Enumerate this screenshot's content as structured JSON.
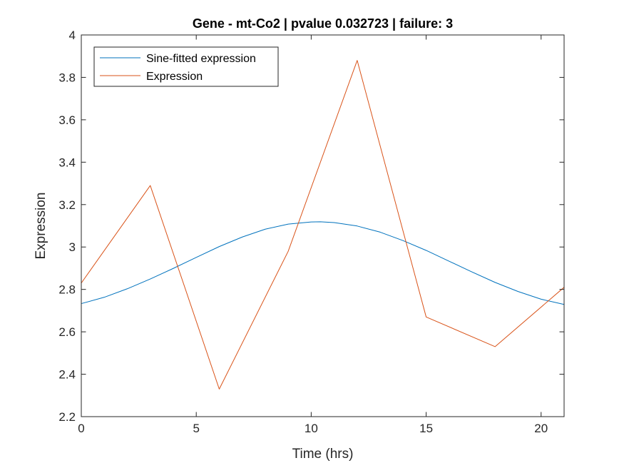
{
  "chart_data": {
    "type": "line",
    "title": "Gene - mt-Co2 | pvalue 0.032723 | failure: 3",
    "xlabel": "Time (hrs)",
    "ylabel": "Expression",
    "xlim": [
      0,
      21
    ],
    "ylim": [
      2.2,
      4
    ],
    "xticks": [
      0,
      5,
      10,
      15,
      20
    ],
    "xtick_labels": [
      "0",
      "5",
      "10",
      "15",
      "20"
    ],
    "yticks": [
      2.2,
      2.4,
      2.6,
      2.8,
      3,
      3.2,
      3.4,
      3.6,
      3.8,
      4
    ],
    "ytick_labels": [
      "2.2",
      "2.4",
      "2.6",
      "2.8",
      "3",
      "3.2",
      "3.4",
      "3.6",
      "3.8",
      "4"
    ],
    "grid": false,
    "legend_position": "top-left",
    "series": [
      {
        "name": "Sine-fitted expression",
        "color": "#0072BD",
        "x": [
          0,
          1,
          2,
          3,
          4,
          5,
          6,
          7,
          8,
          9,
          10,
          10.4,
          11,
          12,
          13,
          14,
          15,
          16,
          17,
          18,
          19,
          20,
          21
        ],
        "y": [
          2.733,
          2.763,
          2.803,
          2.849,
          2.899,
          2.951,
          3.002,
          3.047,
          3.084,
          3.108,
          3.118,
          3.119,
          3.115,
          3.099,
          3.07,
          3.03,
          2.984,
          2.933,
          2.882,
          2.833,
          2.79,
          2.754,
          2.729
        ]
      },
      {
        "name": "Expression",
        "color": "#D95319",
        "x": [
          0,
          3,
          6,
          9,
          12,
          15,
          18,
          21
        ],
        "y": [
          2.83,
          3.29,
          2.33,
          2.98,
          3.88,
          2.67,
          2.53,
          2.81
        ]
      }
    ]
  }
}
